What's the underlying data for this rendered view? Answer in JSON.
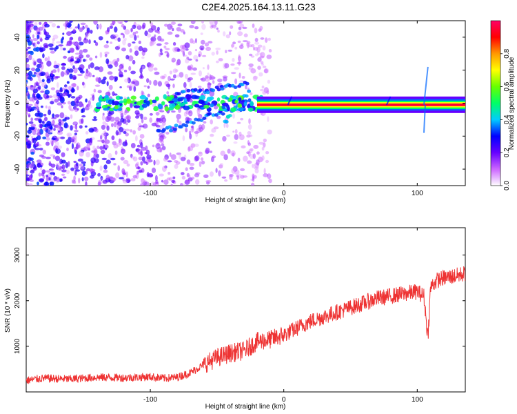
{
  "title": "C2E4.2025.164.13.11.G23",
  "chart_data": [
    {
      "type": "heatmap",
      "xlabel": "Height of straight line (km)",
      "ylabel": "Frequency (Hz)",
      "xlim": [
        -193,
        136
      ],
      "ylim": [
        -50,
        50
      ],
      "xticks": [
        -100,
        0,
        100
      ],
      "yticks": [
        -40,
        -20,
        0,
        20,
        40
      ],
      "colorbar": {
        "label": "Normalized spectral amplitude",
        "range": [
          0,
          1
        ],
        "ticks": [
          0.0,
          0.2,
          0.4,
          0.6,
          0.8
        ],
        "colors": [
          "#ffffff",
          "#cc66ff",
          "#6600ff",
          "#0000ff",
          "#00ccff",
          "#00ff66",
          "#66ff00",
          "#ffff00",
          "#ff9900",
          "#ff0000",
          "#ff0066"
        ]
      },
      "band": {
        "frequency": -1,
        "start": -20,
        "end": 136,
        "max_amplitude": 0.95
      },
      "scatter_region": {
        "start": -193,
        "end": -20,
        "frequency_range": [
          -50,
          50
        ]
      }
    },
    {
      "type": "line",
      "xlabel": "Height of straight line (km)",
      "ylabel": "SNR (10 * v/v)",
      "xlim": [
        -193,
        136
      ],
      "ylim": [
        0,
        3600
      ],
      "xticks": [
        -100,
        0,
        100
      ],
      "yticks": [
        1000,
        2000,
        3000
      ],
      "color": "#ee3333",
      "series": [
        {
          "x": [
            -193,
            -180,
            -160,
            -140,
            -120,
            -100,
            -90,
            -80,
            -70,
            -60,
            -50,
            -40,
            -30,
            -20,
            -10,
            0,
            10,
            20,
            30,
            40,
            50,
            60,
            70,
            80,
            90,
            100,
            105,
            108,
            110,
            115,
            120,
            130,
            136
          ],
          "y": [
            250,
            300,
            280,
            320,
            310,
            330,
            300,
            320,
            420,
            600,
            750,
            850,
            900,
            1100,
            1150,
            1250,
            1400,
            1550,
            1650,
            1750,
            1850,
            1950,
            2050,
            2100,
            2150,
            2200,
            2100,
            1200,
            2300,
            2450,
            2500,
            2550,
            2600
          ]
        }
      ]
    }
  ]
}
